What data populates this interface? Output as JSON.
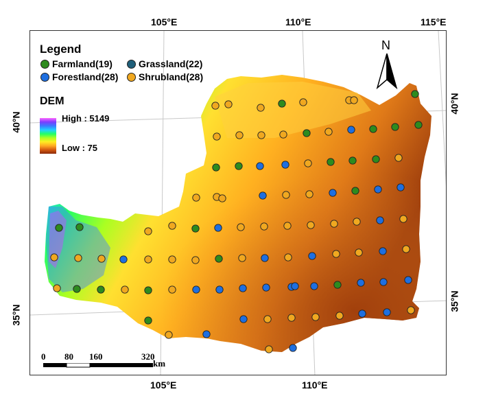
{
  "ticks": {
    "top": [
      "105°E",
      "110°E",
      "115°E"
    ],
    "bottom": [
      "105°E",
      "110°E"
    ],
    "left": [
      "40°N",
      "35°N"
    ],
    "right": [
      "40°N",
      "35°N"
    ]
  },
  "legend": {
    "title": "Legend",
    "items": [
      {
        "label": "Farmland(19)",
        "color": "#2e8b1e"
      },
      {
        "label": "Grassland(22)",
        "color": "#1f5f7a"
      },
      {
        "label": "Forestland(28)",
        "color": "#1e6fe0"
      },
      {
        "label": "Shrubland(28)",
        "color": "#f0a820"
      }
    ]
  },
  "dem": {
    "title": "DEM",
    "high": "High : 5149",
    "low": "Low : 75"
  },
  "north_arrow": {
    "label": "N"
  },
  "scale_bar": {
    "labels": [
      "0",
      "80",
      "160",
      "320"
    ],
    "unit": "km"
  },
  "site_types_order": [
    "farmland",
    "grassland",
    "forestland",
    "shrubland"
  ]
}
